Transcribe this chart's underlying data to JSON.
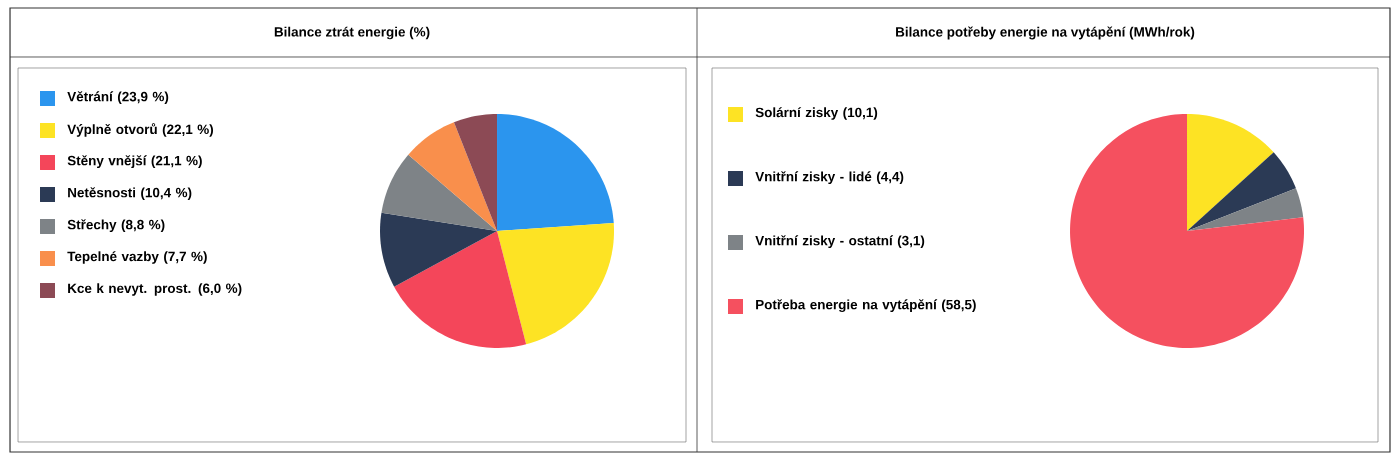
{
  "chart_data": [
    {
      "type": "pie",
      "title": "Bilance ztrát energie (%)",
      "categories": [
        "Větrání (23,9 %)",
        "Výplně otvorů (22,1 %)",
        "Stěny vnější (21,1 %)",
        "Netěsnosti (10,4 %)",
        "Střechy (8,8 %)",
        "Tepelné vazby (7,7 %)",
        "Kce k nevyt. prost. (6,0 %)"
      ],
      "values": [
        23.9,
        22.1,
        21.1,
        10.4,
        8.8,
        7.7,
        6.0
      ],
      "colors": [
        "#2b95ee",
        "#fde324",
        "#f4465a",
        "#2b3a55",
        "#7e8387",
        "#f98f4c",
        "#8c4a55"
      ],
      "legend": "left"
    },
    {
      "type": "pie",
      "title": "Bilance potřeby energie na vytápění (MWh/rok)",
      "categories": [
        "Solární zisky (10,1)",
        "Vnitřní zisky - lidé (4,4)",
        "Vnitřní zisky - ostatní (3,1)",
        "Potřeba energie na vytápění (58,5)"
      ],
      "values": [
        10.1,
        4.4,
        3.1,
        58.5
      ],
      "colors": [
        "#fde324",
        "#2b3a55",
        "#7e8387",
        "#f5505f"
      ],
      "legend": "left"
    }
  ]
}
